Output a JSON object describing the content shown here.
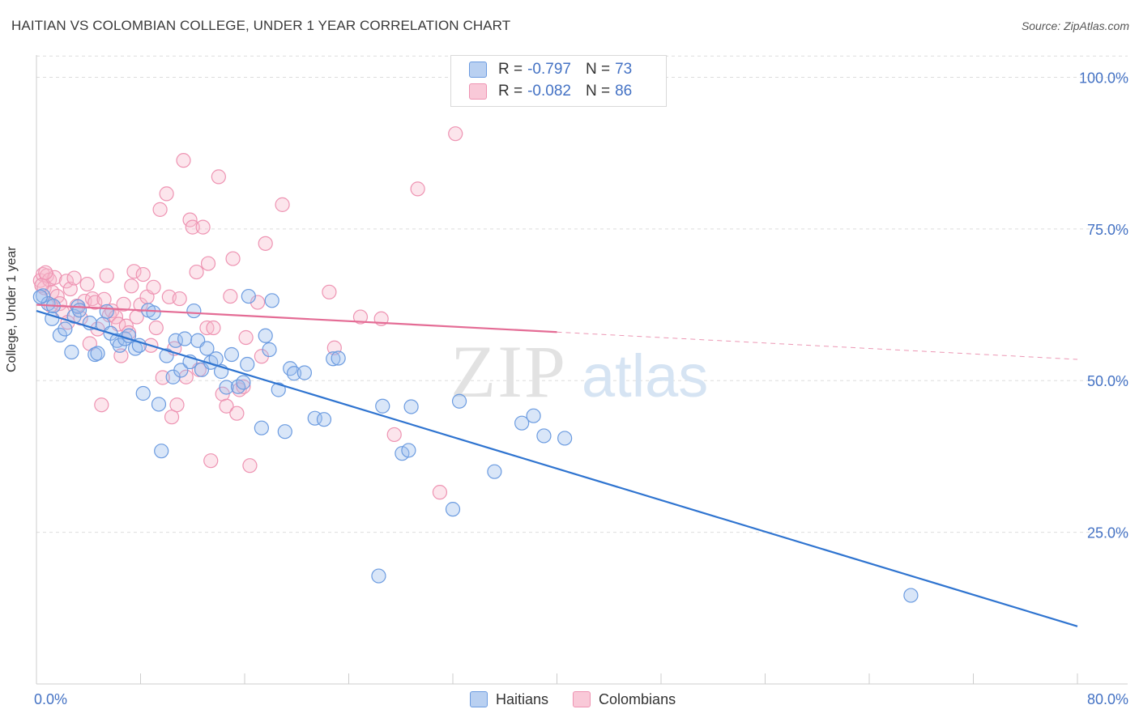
{
  "header": {
    "title": "HAITIAN VS COLOMBIAN COLLEGE, UNDER 1 YEAR CORRELATION CHART",
    "source": "Source: ZipAtlas.com"
  },
  "watermark": {
    "zip": "ZIP",
    "atlas": "atlas"
  },
  "legend": {
    "haitians": {
      "r_label": "R =",
      "r": "-0.797",
      "n_label": "N =",
      "n": "73"
    },
    "colombians": {
      "r_label": "R =",
      "r": "-0.082",
      "n_label": "N =",
      "n": "86"
    }
  },
  "chart_data": {
    "type": "scatter",
    "title": "HAITIAN VS COLOMBIAN COLLEGE, UNDER 1 YEAR CORRELATION CHART",
    "xlabel": "",
    "ylabel": "College, Under 1 year",
    "xlim": [
      0,
      80
    ],
    "ylim": [
      0,
      105
    ],
    "x_tick_labels": [
      "0.0%",
      "80.0%"
    ],
    "y_tick_labels": [
      "25.0%",
      "50.0%",
      "75.0%",
      "100.0%"
    ],
    "y_ticks": [
      25,
      50,
      75,
      100
    ],
    "grid": "horizontal dashed",
    "legend_position": "top-center and bottom-center",
    "colors": {
      "haitians": "#4a86d8",
      "haitians_line": "#2f74d0",
      "colombians": "#f08cad",
      "colombians_line": "#e46c95"
    },
    "series": [
      {
        "name": "Haitians",
        "trendline": {
          "x": [
            0,
            80
          ],
          "y": [
            61.5,
            9.5
          ],
          "style": "solid"
        },
        "points": [
          [
            0.5,
            64
          ],
          [
            0.9,
            62.7
          ],
          [
            1.2,
            60.2
          ],
          [
            1.3,
            62.3
          ],
          [
            1.8,
            57.5
          ],
          [
            2.2,
            58.5
          ],
          [
            2.7,
            54.7
          ],
          [
            2.9,
            60.6
          ],
          [
            3.2,
            62.2
          ],
          [
            3.3,
            61.6
          ],
          [
            4.1,
            59.5
          ],
          [
            4.5,
            54.3
          ],
          [
            4.7,
            54.5
          ],
          [
            5.1,
            59.3
          ],
          [
            5.4,
            61.4
          ],
          [
            5.7,
            57.8
          ],
          [
            6.2,
            56.6
          ],
          [
            6.4,
            55.8
          ],
          [
            6.8,
            56.9
          ],
          [
            7.1,
            57.4
          ],
          [
            7.6,
            55.3
          ],
          [
            7.9,
            55.8
          ],
          [
            8.2,
            47.9
          ],
          [
            8.6,
            61.6
          ],
          [
            9.0,
            61.2
          ],
          [
            9.4,
            46.1
          ],
          [
            9.6,
            38.4
          ],
          [
            10.0,
            54.1
          ],
          [
            10.5,
            50.6
          ],
          [
            10.7,
            56.6
          ],
          [
            11.1,
            51.7
          ],
          [
            11.4,
            56.9
          ],
          [
            11.8,
            53.1
          ],
          [
            12.1,
            61.5
          ],
          [
            12.4,
            56.6
          ],
          [
            12.7,
            51.8
          ],
          [
            13.1,
            55.3
          ],
          [
            13.4,
            53.0
          ],
          [
            13.8,
            53.6
          ],
          [
            14.2,
            51.5
          ],
          [
            14.6,
            48.9
          ],
          [
            15.0,
            54.3
          ],
          [
            15.5,
            49.0
          ],
          [
            15.9,
            49.7
          ],
          [
            16.2,
            52.7
          ],
          [
            16.3,
            63.9
          ],
          [
            17.3,
            42.2
          ],
          [
            17.6,
            57.4
          ],
          [
            17.9,
            55.1
          ],
          [
            18.1,
            63.2
          ],
          [
            18.6,
            48.5
          ],
          [
            19.1,
            41.6
          ],
          [
            19.5,
            52.0
          ],
          [
            19.8,
            51.2
          ],
          [
            20.6,
            51.3
          ],
          [
            21.4,
            43.8
          ],
          [
            22.1,
            43.6
          ],
          [
            22.8,
            53.6
          ],
          [
            23.2,
            53.7
          ],
          [
            26.3,
            17.8
          ],
          [
            26.6,
            45.8
          ],
          [
            28.1,
            38.0
          ],
          [
            28.6,
            38.5
          ],
          [
            28.8,
            45.7
          ],
          [
            32.0,
            28.8
          ],
          [
            32.5,
            46.6
          ],
          [
            35.2,
            35.0
          ],
          [
            37.3,
            43.0
          ],
          [
            38.2,
            44.2
          ],
          [
            39.0,
            40.9
          ],
          [
            40.6,
            40.5
          ],
          [
            67.2,
            14.6
          ],
          [
            0.3,
            63.8
          ]
        ]
      },
      {
        "name": "Colombians",
        "trendline": {
          "x": [
            0,
            40
          ],
          "y": [
            62.5,
            58
          ],
          "style": "solid",
          "extension": {
            "x": [
              40,
              80
            ],
            "y": [
              58,
              53.5
            ],
            "style": "dashed"
          }
        },
        "points": [
          [
            0.3,
            66.5
          ],
          [
            0.5,
            67.5
          ],
          [
            0.6,
            65.3
          ],
          [
            0.8,
            67.3
          ],
          [
            1.0,
            66.6
          ],
          [
            1.2,
            64.6
          ],
          [
            1.4,
            67.0
          ],
          [
            1.6,
            63.9
          ],
          [
            1.8,
            62.7
          ],
          [
            2.0,
            61.3
          ],
          [
            2.3,
            66.4
          ],
          [
            2.6,
            65.1
          ],
          [
            2.9,
            66.9
          ],
          [
            3.1,
            62.3
          ],
          [
            3.4,
            60.3
          ],
          [
            3.7,
            63.1
          ],
          [
            3.9,
            65.9
          ],
          [
            4.1,
            56.1
          ],
          [
            4.3,
            63.5
          ],
          [
            4.5,
            62.9
          ],
          [
            4.7,
            58.5
          ],
          [
            5.0,
            46.0
          ],
          [
            5.2,
            63.4
          ],
          [
            5.4,
            67.3
          ],
          [
            5.6,
            60.8
          ],
          [
            5.8,
            61.5
          ],
          [
            6.1,
            60.5
          ],
          [
            6.3,
            59.3
          ],
          [
            6.5,
            54.1
          ],
          [
            6.7,
            62.6
          ],
          [
            6.9,
            59.0
          ],
          [
            7.1,
            57.9
          ],
          [
            7.3,
            65.6
          ],
          [
            7.5,
            68.0
          ],
          [
            7.7,
            60.5
          ],
          [
            8.0,
            62.5
          ],
          [
            8.2,
            67.5
          ],
          [
            8.5,
            63.8
          ],
          [
            8.8,
            55.8
          ],
          [
            9.0,
            65.4
          ],
          [
            9.2,
            58.7
          ],
          [
            9.5,
            78.2
          ],
          [
            9.7,
            50.5
          ],
          [
            10.0,
            80.8
          ],
          [
            10.2,
            63.8
          ],
          [
            10.4,
            44.0
          ],
          [
            10.6,
            55.3
          ],
          [
            10.8,
            46.0
          ],
          [
            11.0,
            63.5
          ],
          [
            11.3,
            86.3
          ],
          [
            11.5,
            50.6
          ],
          [
            11.8,
            76.5
          ],
          [
            12.0,
            75.3
          ],
          [
            12.3,
            67.9
          ],
          [
            12.5,
            51.8
          ],
          [
            12.8,
            75.3
          ],
          [
            13.1,
            58.7
          ],
          [
            13.2,
            69.3
          ],
          [
            13.4,
            36.8
          ],
          [
            13.6,
            58.7
          ],
          [
            14.0,
            83.6
          ],
          [
            14.3,
            47.8
          ],
          [
            14.6,
            45.8
          ],
          [
            14.9,
            63.9
          ],
          [
            15.1,
            70.1
          ],
          [
            15.4,
            44.6
          ],
          [
            15.6,
            48.5
          ],
          [
            15.9,
            49.0
          ],
          [
            16.1,
            57.1
          ],
          [
            16.4,
            36.0
          ],
          [
            17.0,
            62.9
          ],
          [
            17.3,
            54.0
          ],
          [
            17.6,
            72.6
          ],
          [
            18.9,
            79.0
          ],
          [
            22.5,
            64.6
          ],
          [
            22.9,
            55.4
          ],
          [
            24.9,
            60.5
          ],
          [
            26.5,
            60.2
          ],
          [
            27.5,
            41.1
          ],
          [
            29.3,
            81.6
          ],
          [
            31.0,
            31.6
          ],
          [
            32.2,
            90.7
          ],
          [
            0.4,
            65.7
          ],
          [
            1.1,
            62.4
          ],
          [
            2.4,
            59.6
          ],
          [
            0.7,
            67.8
          ]
        ]
      }
    ]
  }
}
